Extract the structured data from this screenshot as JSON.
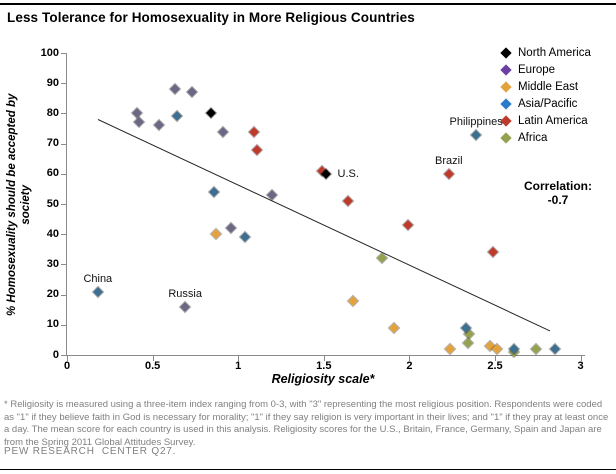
{
  "header": {
    "title": "Less Tolerance for Homosexuality in More Religious Countries"
  },
  "chart_data": {
    "type": "scatter",
    "title": "Less Tolerance for Homosexuality in More Religious Countries",
    "xlabel": "Religiosity scale*",
    "ylabel": "% Homosexuality should be accepted by society",
    "xlim": [
      0,
      3
    ],
    "ylim": [
      0,
      100
    ],
    "x_ticks": [
      0,
      0.5,
      1,
      1.5,
      2,
      2.5,
      3
    ],
    "x_tick_labels": [
      "0",
      "0.5",
      "1",
      "1.5",
      "2",
      "2.5",
      "3"
    ],
    "y_ticks": [
      0,
      10,
      20,
      30,
      40,
      50,
      60,
      70,
      80,
      90,
      100
    ],
    "grid": "off",
    "legend_position": "top-right",
    "correlation_label": "Correlation:",
    "correlation_value": "-0.7",
    "trend_line": {
      "x1": 0.18,
      "y1": 78,
      "x2": 2.82,
      "y2": 8
    },
    "series": [
      {
        "name": "North America",
        "color": "#000000",
        "legend_color": "#000000",
        "points": [
          {
            "x": 0.84,
            "y": 80
          },
          {
            "x": 1.51,
            "y": 60,
            "label": "U.S.",
            "label_pos": "right"
          }
        ]
      },
      {
        "name": "Europe",
        "color": "#6E6783",
        "legend_color": "#6C3FA5",
        "points": [
          {
            "x": 0.63,
            "y": 88
          },
          {
            "x": 0.73,
            "y": 87
          },
          {
            "x": 0.41,
            "y": 80
          },
          {
            "x": 0.42,
            "y": 77
          },
          {
            "x": 0.54,
            "y": 76
          },
          {
            "x": 0.91,
            "y": 74
          },
          {
            "x": 1.2,
            "y": 53
          },
          {
            "x": 0.96,
            "y": 42
          },
          {
            "x": 0.69,
            "y": 16,
            "label": "Russia",
            "label_pos": "above"
          }
        ]
      },
      {
        "name": "Middle East",
        "color": "#E3A23D",
        "legend_color": "#E3A23D",
        "points": [
          {
            "x": 0.87,
            "y": 40
          },
          {
            "x": 1.67,
            "y": 18
          },
          {
            "x": 1.91,
            "y": 9
          },
          {
            "x": 2.24,
            "y": 2
          },
          {
            "x": 2.47,
            "y": 3
          },
          {
            "x": 2.51,
            "y": 2
          }
        ]
      },
      {
        "name": "Asia/Pacific",
        "color": "#3D7090",
        "legend_color": "#2B7BC8",
        "points": [
          {
            "x": 0.18,
            "y": 21,
            "label": "China",
            "label_pos": "above"
          },
          {
            "x": 0.64,
            "y": 79
          },
          {
            "x": 0.86,
            "y": 54
          },
          {
            "x": 1.04,
            "y": 39
          },
          {
            "x": 2.39,
            "y": 73,
            "label": "Philippines",
            "label_pos": "above"
          },
          {
            "x": 2.33,
            "y": 9
          },
          {
            "x": 2.61,
            "y": 2
          },
          {
            "x": 2.85,
            "y": 2
          }
        ]
      },
      {
        "name": "Latin America",
        "color": "#BE3B2B",
        "legend_color": "#BE3B2B",
        "points": [
          {
            "x": 1.09,
            "y": 74
          },
          {
            "x": 1.11,
            "y": 68
          },
          {
            "x": 1.49,
            "y": 61
          },
          {
            "x": 1.64,
            "y": 51
          },
          {
            "x": 1.99,
            "y": 43
          },
          {
            "x": 2.23,
            "y": 60,
            "label": "Brazil",
            "label_pos": "above"
          },
          {
            "x": 2.49,
            "y": 34
          }
        ]
      },
      {
        "name": "Africa",
        "color": "#96A14F",
        "legend_color": "#96A14F",
        "points": [
          {
            "x": 1.84,
            "y": 32
          },
          {
            "x": 2.35,
            "y": 7
          },
          {
            "x": 2.34,
            "y": 4
          },
          {
            "x": 2.61,
            "y": 1
          },
          {
            "x": 2.74,
            "y": 2
          }
        ]
      }
    ]
  },
  "footnote": "* Religiosity is measured using a three-item index ranging from 0-3, with \"3\" representing the most religious position. Respondents were coded as \"1\" if they believe faith in God is necessary for morality; \"1\" if they say religion is very important in their lives; and \"1\" if they pray at least once a day. The mean score for each country is used in this analysis. Religiosity scores for the U.S., Britain, France, Germany, Spain and Japan are from the Spring 2011 Global Attitudes Survey.",
  "source": "PEW RESEARCH  CENTER Q27."
}
